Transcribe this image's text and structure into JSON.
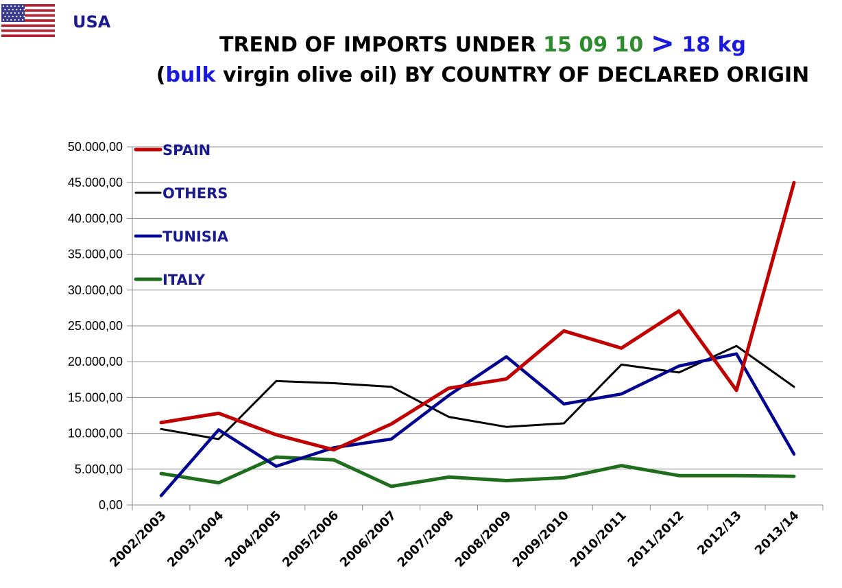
{
  "header": {
    "country": "USA",
    "title_line1": {
      "part1": "TREND OF IMPORTS UNDER ",
      "code": "15 09 10",
      "arrow": ">",
      "weight": "18 kg"
    },
    "title_line2": {
      "open": "(",
      "bulk": "bulk",
      "rest": " virgin olive oil) BY COUNTRY OF DECLARED ORIGIN"
    }
  },
  "chart_data": {
    "type": "line",
    "title": "TREND OF IMPORTS UNDER 15 09 10 > 18 kg (bulk virgin olive oil) BY COUNTRY OF DECLARED ORIGIN",
    "xlabel": "",
    "ylabel": "",
    "ylim": [
      0,
      50000
    ],
    "yticks": [
      0,
      5000,
      10000,
      15000,
      20000,
      25000,
      30000,
      35000,
      40000,
      45000,
      50000
    ],
    "ytick_labels": [
      "0,00",
      "5.000,00",
      "10.000,00",
      "15.000,00",
      "20.000,00",
      "25.000,00",
      "30.000,00",
      "35.000,00",
      "40.000,00",
      "45.000,00",
      "50.000,00"
    ],
    "grid": true,
    "legend_position": "top-left",
    "categories": [
      "2002/2003",
      "2003/2004",
      "2004/2005",
      "2005/2006",
      "2006/2007",
      "2007/2008",
      "2008/2009",
      "2009/2010",
      "2010/2011",
      "2011/2012",
      "2012/13",
      "2013/14"
    ],
    "series": [
      {
        "name": "SPAIN",
        "color": "#c00000",
        "values": [
          11500,
          12800,
          9800,
          7700,
          11300,
          16300,
          17600,
          24300,
          21900,
          27100,
          16000,
          45000
        ]
      },
      {
        "name": "OTHERS",
        "color": "#000000",
        "values": [
          10600,
          9200,
          17300,
          17000,
          16500,
          12300,
          10900,
          11400,
          19600,
          18500,
          22200,
          16500
        ]
      },
      {
        "name": "TUNISIA",
        "color": "#000090",
        "values": [
          1300,
          10500,
          5400,
          8000,
          9200,
          15300,
          20700,
          14100,
          15500,
          19400,
          21100,
          7100
        ]
      },
      {
        "name": "ITALY",
        "color": "#1e6e1e",
        "values": [
          4400,
          3100,
          6700,
          6300,
          2600,
          3900,
          3400,
          3800,
          5500,
          4100,
          4100,
          4000
        ]
      }
    ]
  }
}
